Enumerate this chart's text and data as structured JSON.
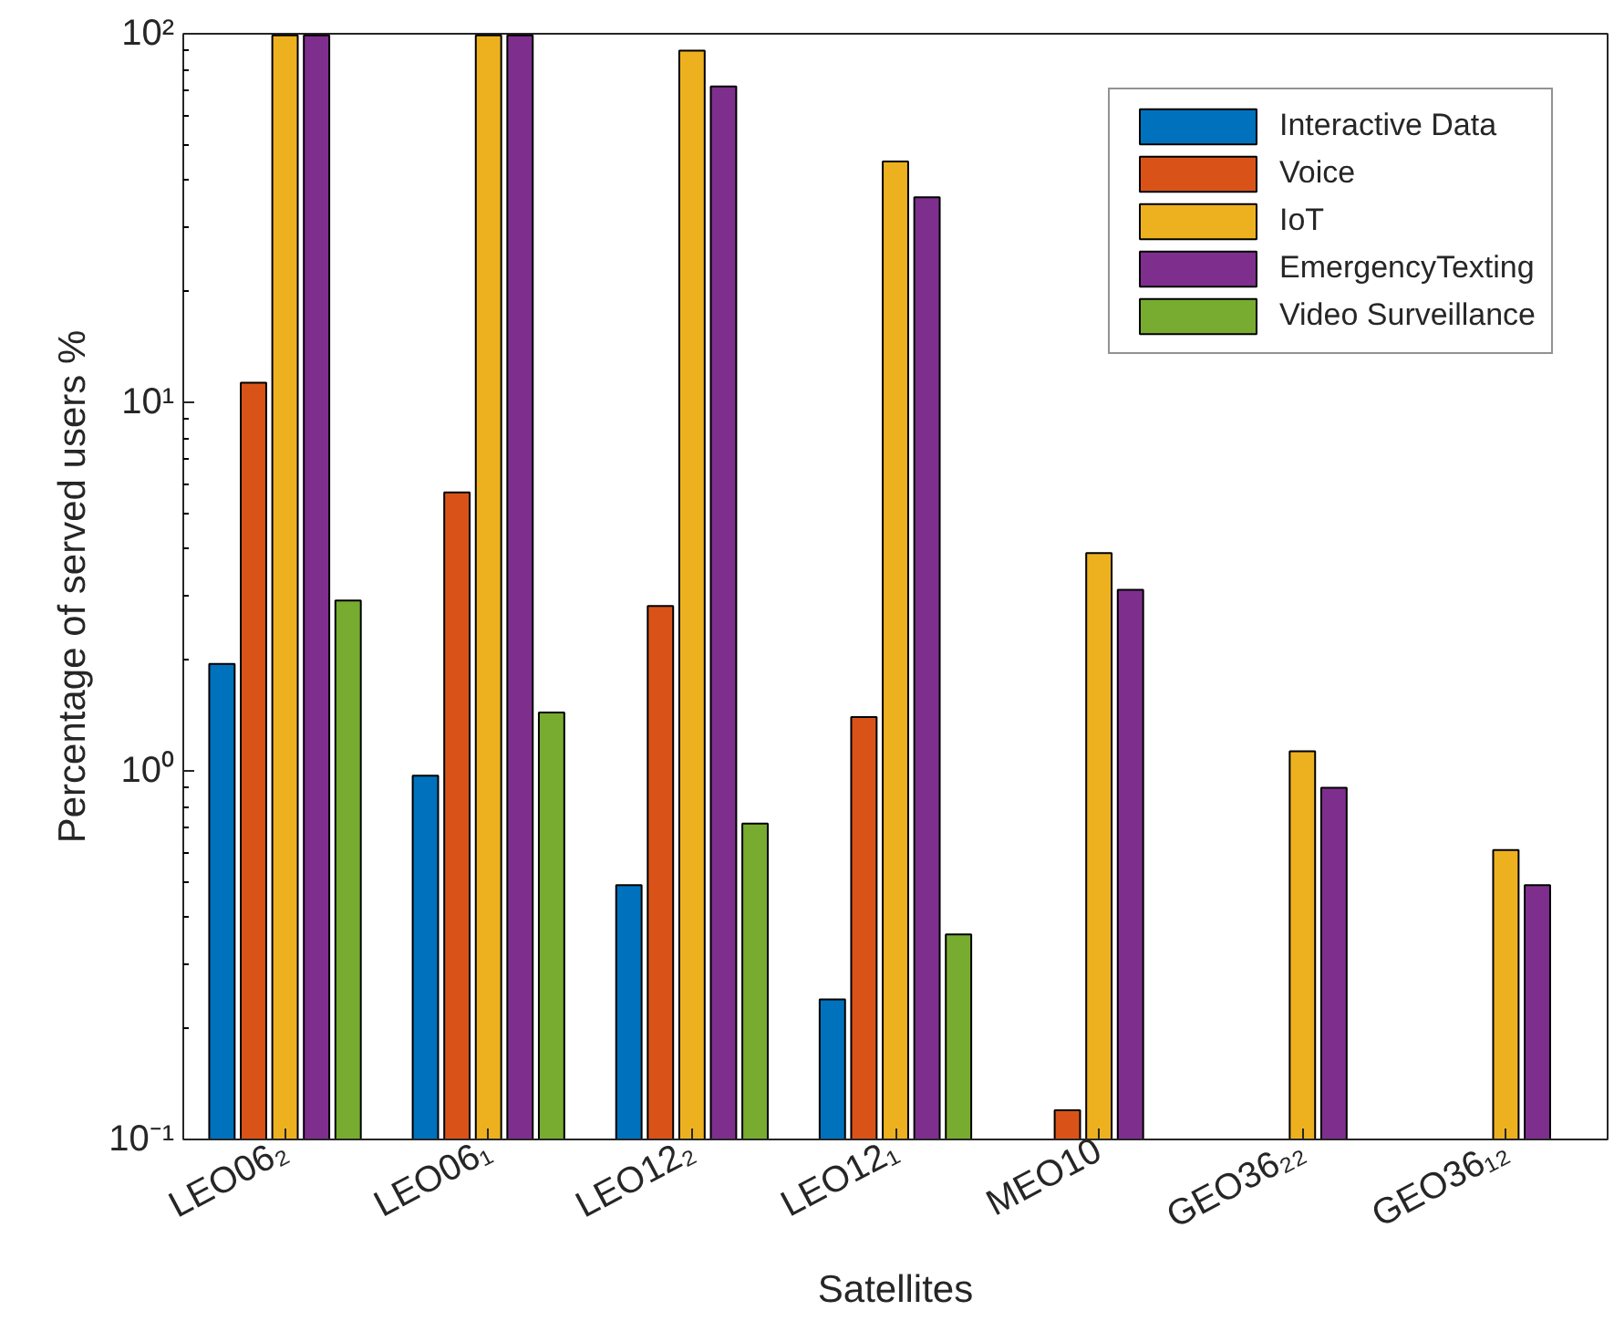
{
  "chart_data": {
    "type": "bar",
    "xlabel": "Satellites",
    "ylabel": "Percentage of served users %",
    "categories": [
      "LEO06₂",
      "LEO06₁",
      "LEO12₂",
      "LEO12₁",
      "MEO10",
      "GEO36₂₂",
      "GEO36₁₂"
    ],
    "series": [
      {
        "name": "Interactive Data",
        "color": "#0072bd",
        "values": [
          1.95,
          0.97,
          0.49,
          0.24,
          null,
          null,
          null
        ]
      },
      {
        "name": "Voice",
        "color": "#d95319",
        "values": [
          11.3,
          5.7,
          2.8,
          1.4,
          0.12,
          null,
          null
        ]
      },
      {
        "name": "IoT",
        "color": "#edb120",
        "values": [
          99,
          99,
          90,
          45,
          3.9,
          1.13,
          0.61
        ]
      },
      {
        "name": "EmergencyTexting",
        "color": "#7e2f8e",
        "values": [
          99,
          99,
          72,
          36,
          3.1,
          0.9,
          0.49
        ]
      },
      {
        "name": "Video Surveillance",
        "color": "#77ac30",
        "values": [
          2.9,
          1.44,
          0.72,
          0.36,
          null,
          null,
          null
        ]
      }
    ],
    "log": "y",
    "ylim": [
      0.1,
      100
    ],
    "yticks": [
      {
        "value": 0.1,
        "label": "10⁻¹"
      },
      {
        "value": 1,
        "label": "10⁰"
      },
      {
        "value": 10,
        "label": "10¹"
      },
      {
        "value": 100,
        "label": "10²"
      }
    ],
    "grid": false,
    "legend": "top right"
  }
}
